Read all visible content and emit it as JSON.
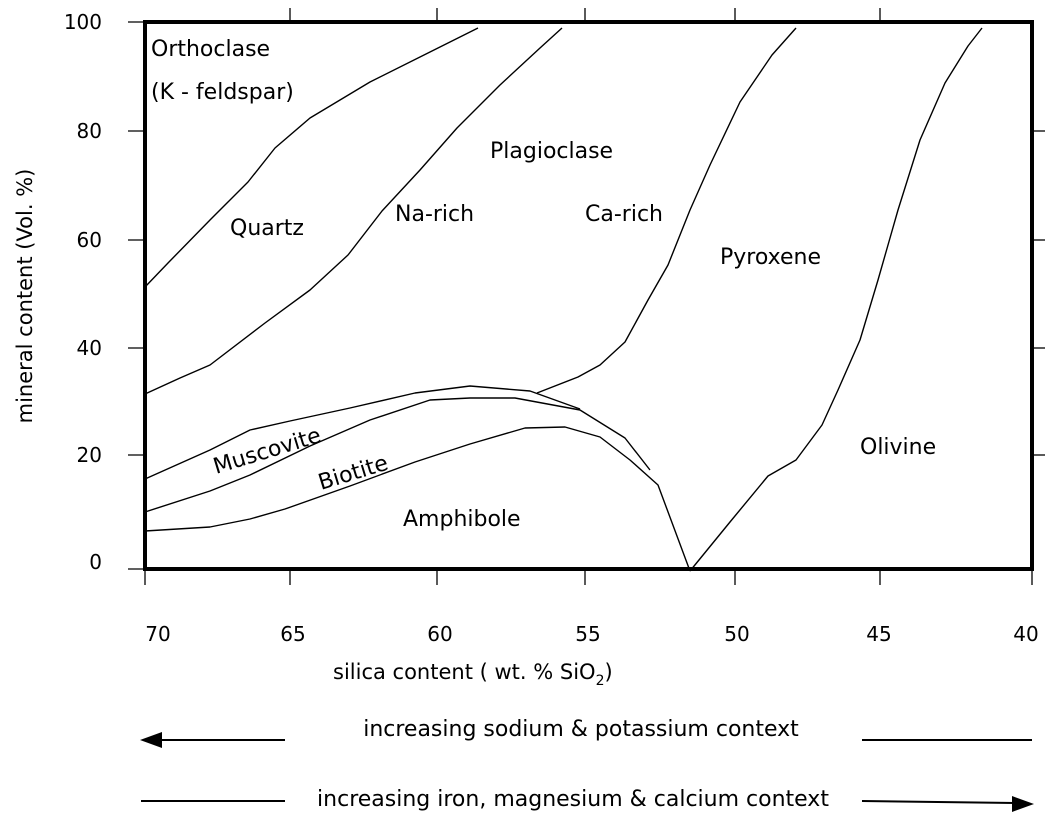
{
  "y_axis": {
    "title": "mineral content (Vol. %)",
    "ticks": [
      "100",
      "80",
      "60",
      "40",
      "20",
      "0"
    ]
  },
  "x_axis": {
    "title_main": "silica content ( wt. % SiO",
    "title_sub": "2",
    "title_end": ")",
    "ticks": [
      "70",
      "65",
      "60",
      "55",
      "50",
      "45",
      "40"
    ]
  },
  "regions": {
    "orthoclase_line1": "Orthoclase",
    "orthoclase_line2": "(K - feldspar)",
    "quartz": "Quartz",
    "na_rich": "Na-rich",
    "plagioclase": "Plagioclase",
    "ca_rich": "Ca-rich",
    "pyroxene": "Pyroxene",
    "muscovite": "Muscovite",
    "biotite": "Biotite",
    "amphibole": "Amphibole",
    "olivine": "Olivine"
  },
  "notes": {
    "sodium_potassium": "increasing sodium & potassium context",
    "iron_magnesium_calcium": "increasing iron, magnesium & calcium context"
  }
}
